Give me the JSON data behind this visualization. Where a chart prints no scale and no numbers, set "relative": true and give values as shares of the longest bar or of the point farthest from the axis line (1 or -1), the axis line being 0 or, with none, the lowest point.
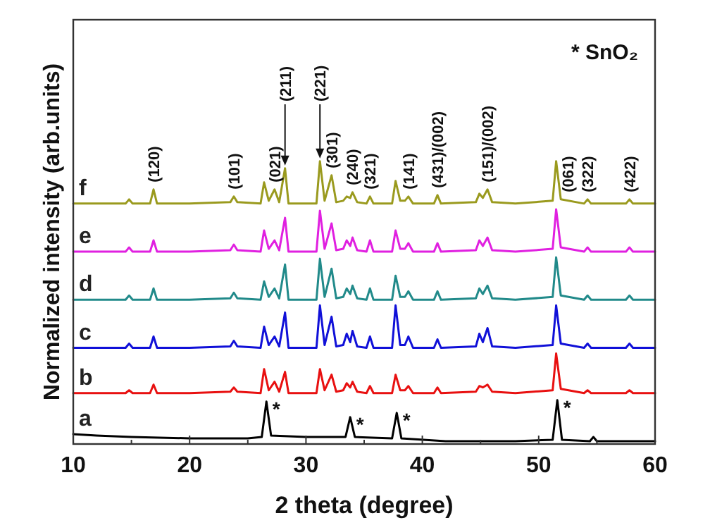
{
  "chart_data": {
    "type": "line",
    "relative": true,
    "xlabel": "2 theta (degree)",
    "ylabel": "Normalized intensity (arb.units)",
    "xlim": [
      10,
      60
    ],
    "xticks": [
      10,
      {
        "value": 15,
        "label": null
      },
      20,
      {
        "value": 25,
        "label": null
      },
      30,
      {
        "value": 35,
        "label": null
      },
      40,
      {
        "value": 45,
        "label": null
      },
      50,
      {
        "value": 55,
        "label": null
      },
      60
    ],
    "legend": false,
    "grid": false,
    "marker": "none",
    "line_style": "solid",
    "x": [
      10,
      12,
      14,
      14.5,
      14.8,
      15.1,
      16.6,
      16.9,
      17.2,
      20,
      23.5,
      23.8,
      24.1,
      26.1,
      26.4,
      26.8,
      27.3,
      27.7,
      28.2,
      28.5,
      30,
      30.9,
      31.2,
      31.6,
      32.2,
      32.6,
      33.2,
      33.5,
      33.8,
      34.0,
      34.4,
      35.2,
      35.5,
      35.8,
      37.4,
      37.7,
      38.1,
      38.5,
      38.8,
      39.2,
      41.0,
      41.3,
      41.6,
      44.6,
      44.9,
      45.2,
      45.6,
      46.0,
      48,
      51.2,
      51.5,
      51.9,
      53.9,
      54.2,
      54.5,
      57.5,
      57.8,
      58.1,
      60
    ],
    "series": [
      {
        "name": "a",
        "color": "#000000",
        "x": [
          10,
          12,
          15,
          20,
          25,
          26.2,
          26.6,
          27.0,
          30,
          33.4,
          33.8,
          34.2,
          37.4,
          37.8,
          38.2,
          42,
          48,
          51.2,
          51.6,
          52.0,
          54.4,
          54.7,
          55,
          60
        ],
        "values": [
          0.035,
          0.03,
          0.025,
          0.02,
          0.02,
          0.025,
          0.15,
          0.03,
          0.025,
          0.025,
          0.095,
          0.025,
          0.02,
          0.11,
          0.02,
          0.01,
          0.01,
          0.015,
          0.155,
          0.015,
          0.01,
          0.025,
          0.01,
          0.01
        ]
      },
      {
        "name": "b",
        "color": "#e81010",
        "values": [
          0.18,
          0.18,
          0.18,
          0.18,
          0.19,
          0.18,
          0.18,
          0.21,
          0.18,
          0.18,
          0.185,
          0.2,
          0.185,
          0.18,
          0.265,
          0.19,
          0.22,
          0.185,
          0.255,
          0.18,
          0.18,
          0.18,
          0.265,
          0.19,
          0.245,
          0.185,
          0.19,
          0.215,
          0.2,
          0.22,
          0.185,
          0.18,
          0.205,
          0.18,
          0.18,
          0.245,
          0.19,
          0.19,
          0.205,
          0.18,
          0.18,
          0.2,
          0.18,
          0.185,
          0.205,
          0.2,
          0.21,
          0.185,
          0.18,
          0.19,
          0.32,
          0.195,
          0.18,
          0.19,
          0.18,
          0.18,
          0.19,
          0.18,
          0.18
        ]
      },
      {
        "name": "c",
        "color": "#1010d8",
        "values": [
          0.34,
          0.34,
          0.34,
          0.34,
          0.355,
          0.34,
          0.34,
          0.38,
          0.34,
          0.34,
          0.345,
          0.365,
          0.345,
          0.34,
          0.415,
          0.35,
          0.38,
          0.345,
          0.465,
          0.34,
          0.34,
          0.34,
          0.49,
          0.35,
          0.45,
          0.345,
          0.35,
          0.39,
          0.36,
          0.4,
          0.345,
          0.34,
          0.38,
          0.34,
          0.34,
          0.49,
          0.35,
          0.35,
          0.38,
          0.34,
          0.34,
          0.37,
          0.34,
          0.345,
          0.39,
          0.36,
          0.41,
          0.345,
          0.34,
          0.35,
          0.49,
          0.355,
          0.34,
          0.355,
          0.34,
          0.34,
          0.355,
          0.34,
          0.34
        ]
      },
      {
        "name": "d",
        "color": "#218a8a",
        "values": [
          0.51,
          0.51,
          0.51,
          0.51,
          0.525,
          0.51,
          0.51,
          0.55,
          0.51,
          0.51,
          0.515,
          0.535,
          0.515,
          0.51,
          0.575,
          0.52,
          0.55,
          0.515,
          0.635,
          0.51,
          0.51,
          0.51,
          0.655,
          0.52,
          0.62,
          0.515,
          0.52,
          0.55,
          0.53,
          0.56,
          0.515,
          0.51,
          0.55,
          0.51,
          0.51,
          0.595,
          0.52,
          0.52,
          0.54,
          0.51,
          0.51,
          0.54,
          0.51,
          0.515,
          0.55,
          0.53,
          0.56,
          0.515,
          0.51,
          0.52,
          0.66,
          0.525,
          0.51,
          0.525,
          0.51,
          0.51,
          0.525,
          0.51,
          0.51
        ]
      },
      {
        "name": "e",
        "color": "#e020e0",
        "values": [
          0.68,
          0.68,
          0.68,
          0.68,
          0.695,
          0.68,
          0.68,
          0.72,
          0.68,
          0.68,
          0.685,
          0.705,
          0.685,
          0.68,
          0.755,
          0.69,
          0.72,
          0.685,
          0.8,
          0.68,
          0.68,
          0.68,
          0.825,
          0.69,
          0.78,
          0.685,
          0.69,
          0.72,
          0.7,
          0.73,
          0.685,
          0.68,
          0.72,
          0.68,
          0.68,
          0.755,
          0.69,
          0.69,
          0.71,
          0.68,
          0.68,
          0.71,
          0.68,
          0.685,
          0.72,
          0.7,
          0.73,
          0.685,
          0.68,
          0.69,
          0.83,
          0.695,
          0.68,
          0.695,
          0.68,
          0.68,
          0.695,
          0.68,
          0.68
        ]
      },
      {
        "name": "f",
        "color": "#9a9a1e",
        "values": [
          0.85,
          0.85,
          0.85,
          0.85,
          0.865,
          0.85,
          0.85,
          0.9,
          0.85,
          0.85,
          0.855,
          0.875,
          0.855,
          0.85,
          0.925,
          0.86,
          0.9,
          0.855,
          0.975,
          0.85,
          0.85,
          0.85,
          1,
          0.86,
          0.95,
          0.855,
          0.86,
          0.875,
          0.87,
          0.89,
          0.855,
          0.85,
          0.875,
          0.85,
          0.85,
          0.93,
          0.86,
          0.86,
          0.875,
          0.85,
          0.85,
          0.88,
          0.85,
          0.855,
          0.885,
          0.87,
          0.9,
          0.855,
          0.85,
          0.86,
          1,
          0.865,
          0.85,
          0.865,
          0.85,
          0.85,
          0.865,
          0.85,
          0.85
        ]
      }
    ],
    "annotations": [
      {
        "text": "(120)",
        "x": 16.9,
        "y": 0.9
      },
      {
        "text": "(101)",
        "x": 23.8,
        "y": 0.875
      },
      {
        "text": "(021)",
        "x": 27.3,
        "y": 0.9
      },
      {
        "text": "(211)",
        "x": 28.2,
        "y": 0.975
      },
      {
        "text": "(221)",
        "x": 31.2,
        "y": 1
      },
      {
        "text": "(301)",
        "x": 32.2,
        "y": 0.95
      },
      {
        "text": "(240)",
        "x": 34.0,
        "y": 0.89
      },
      {
        "text": "(321)",
        "x": 35.5,
        "y": 0.875
      },
      {
        "text": "(141)",
        "x": 38.8,
        "y": 0.875
      },
      {
        "text": "(431)/(002)",
        "x": 41.3,
        "y": 0.88
      },
      {
        "text": "(151)/(002)",
        "x": 45.6,
        "y": 0.9
      },
      {
        "text": "(061)",
        "x": 51.9,
        "y": 0.865
      },
      {
        "text": "(322)",
        "x": 54.2,
        "y": 0.865
      },
      {
        "text": "(422)",
        "x": 57.8,
        "y": 0.865
      },
      {
        "text": "*",
        "x": 26.6,
        "y": 0.15
      },
      {
        "text": "*",
        "x": 33.8,
        "y": 0.095
      },
      {
        "text": "*",
        "x": 37.8,
        "y": 0.11
      },
      {
        "text": "*",
        "x": 51.6,
        "y": 0.155
      },
      "* SnO₂"
    ]
  }
}
